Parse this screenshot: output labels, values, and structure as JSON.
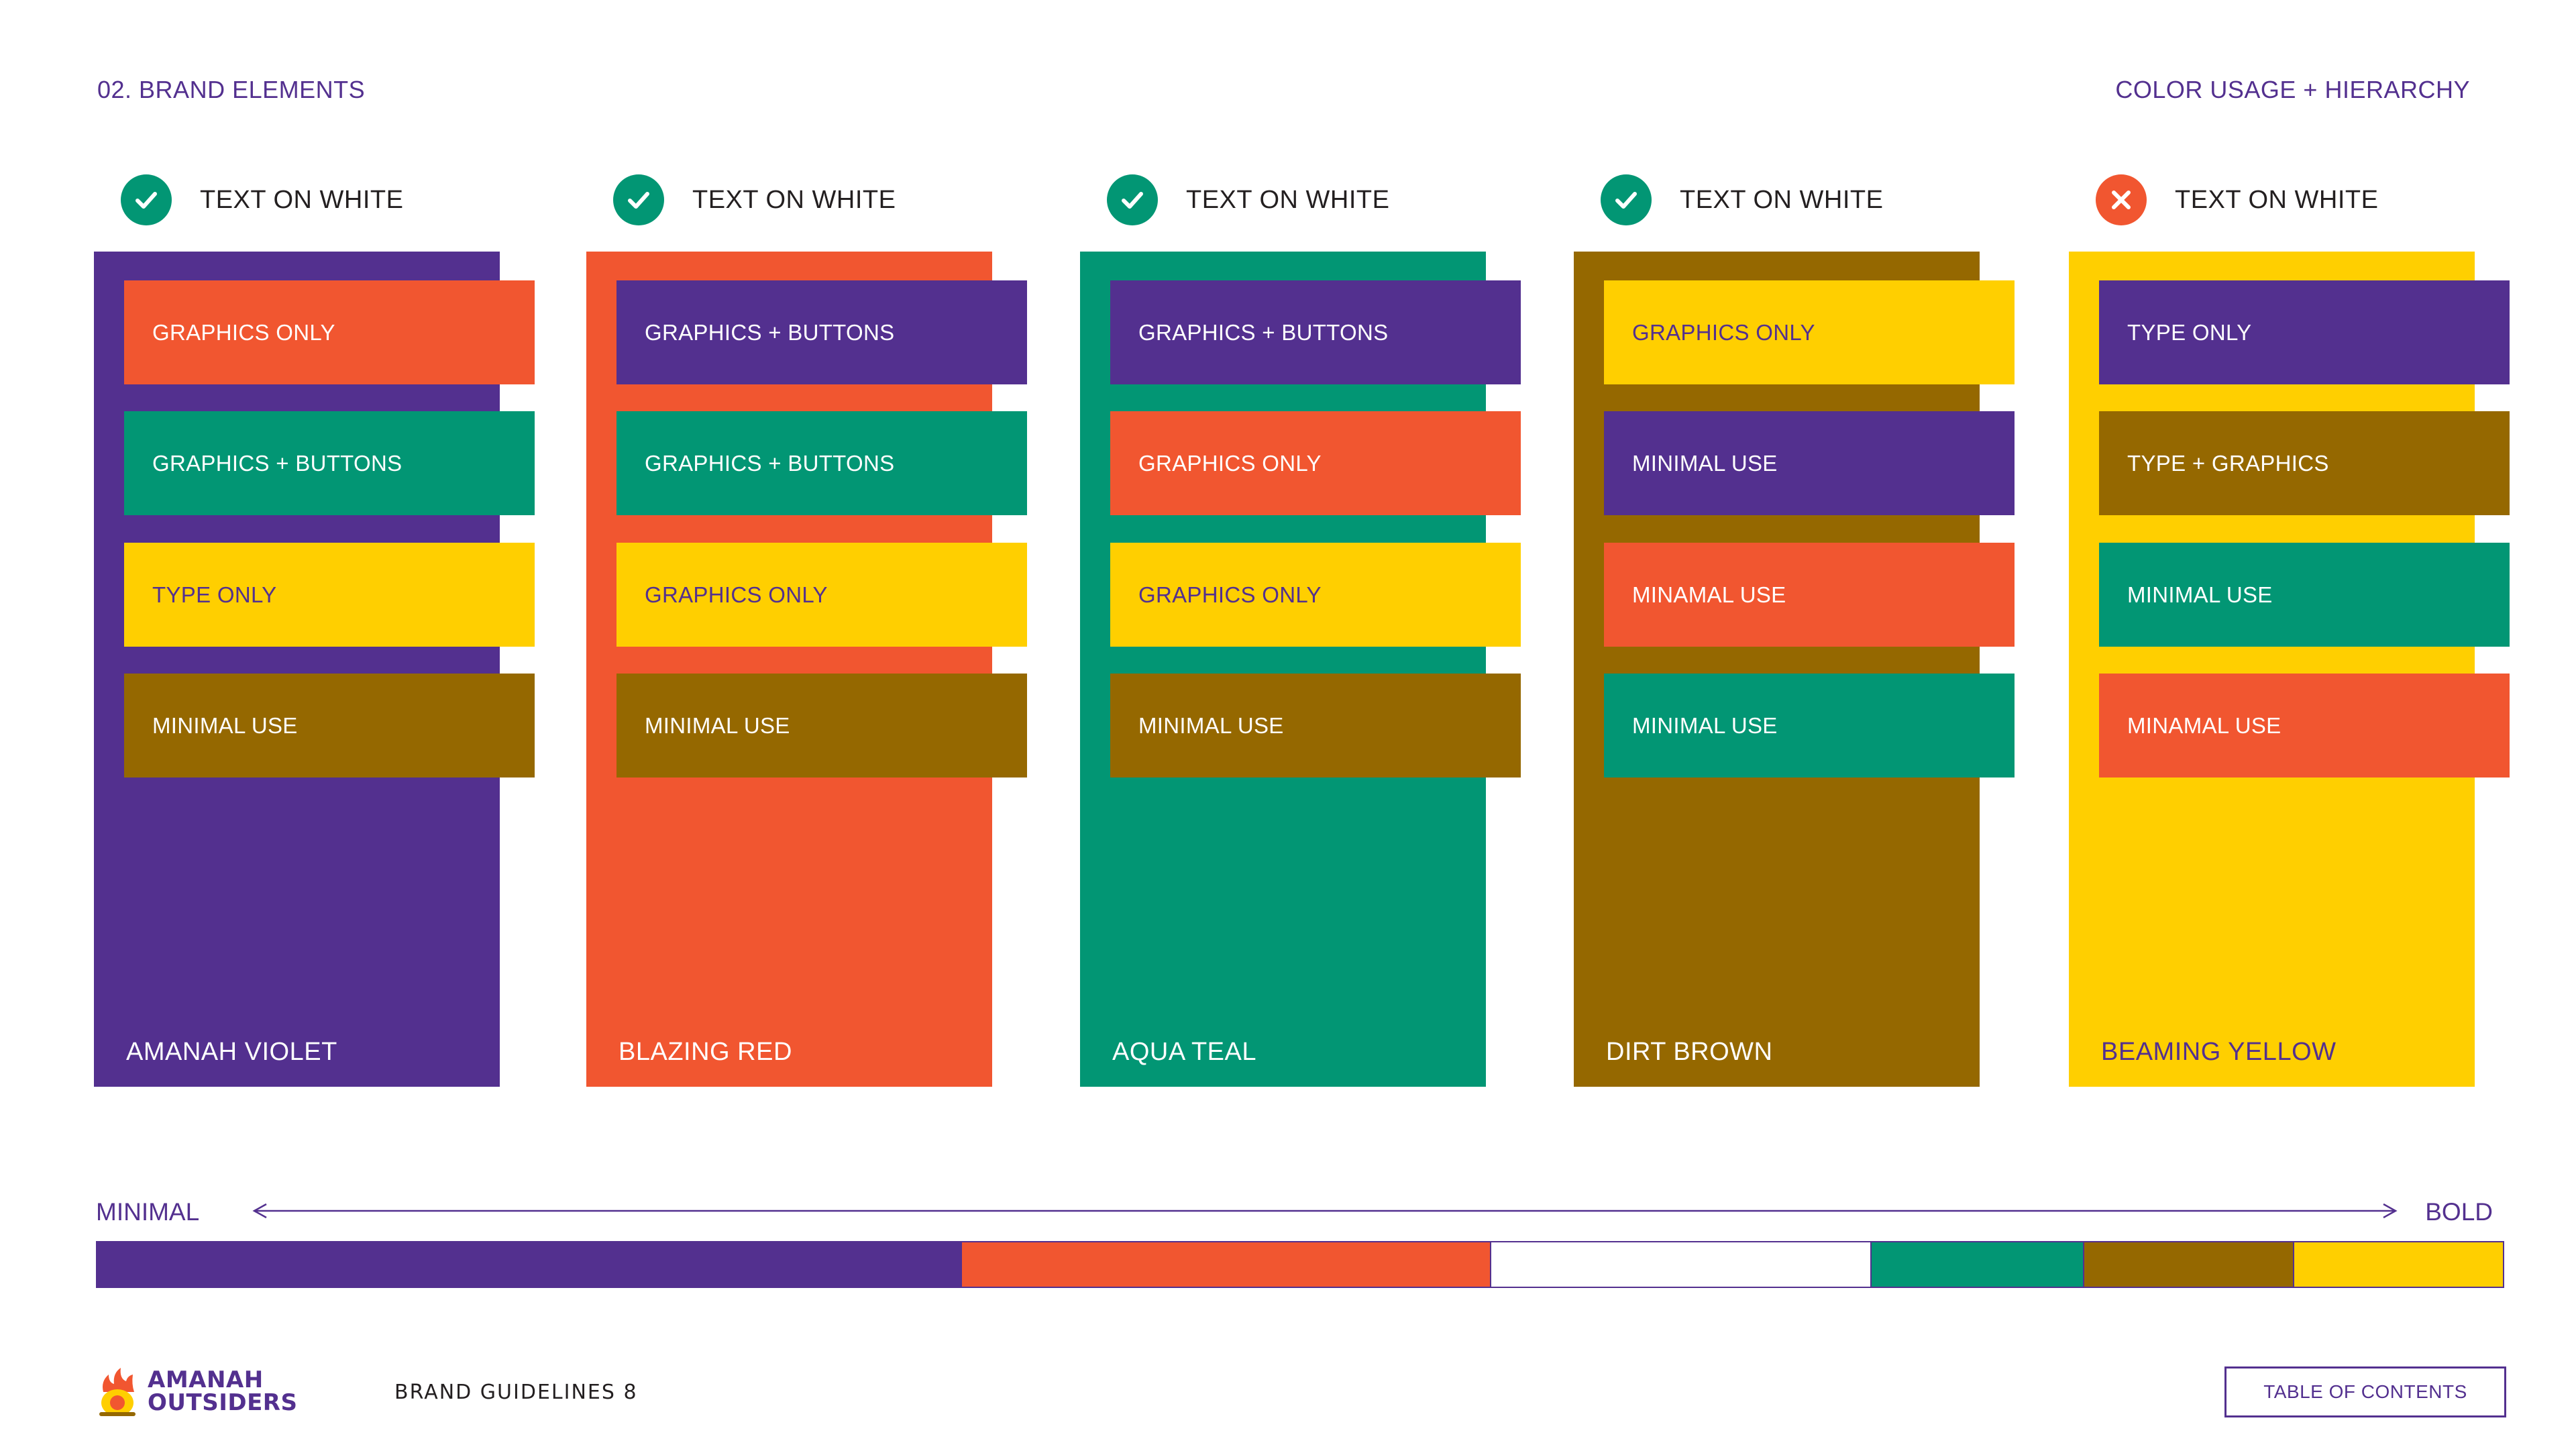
{
  "header": {
    "section": "02. BRAND ELEMENTS",
    "topic": "COLOR USAGE + HIERARCHY"
  },
  "colors": {
    "violet": "#53308f",
    "red": "#f15630",
    "teal": "#029674",
    "brown": "#956800",
    "yellow": "#ffcf00",
    "white": "#ffffff",
    "text_dark": "#231f20"
  },
  "columns": [
    {
      "swatch_name": "AMANAH VIOLET",
      "swatch_color": "#53308f",
      "status": "pass",
      "status_icon": "check-icon",
      "status_label": "TEXT ON WHITE",
      "usages": [
        {
          "label": "GRAPHICS ONLY",
          "bg": "#f15630",
          "fg": "#ffffff"
        },
        {
          "label": "GRAPHICS + BUTTONS",
          "bg": "#029674",
          "fg": "#ffffff"
        },
        {
          "label": "TYPE ONLY",
          "bg": "#ffcf00",
          "fg": "#53308f"
        },
        {
          "label": "MINIMAL USE",
          "bg": "#956800",
          "fg": "#ffffff"
        }
      ]
    },
    {
      "swatch_name": "BLAZING RED",
      "swatch_color": "#f15630",
      "status": "pass",
      "status_icon": "check-icon",
      "status_label": "TEXT ON WHITE",
      "usages": [
        {
          "label": "GRAPHICS + BUTTONS",
          "bg": "#53308f",
          "fg": "#ffffff"
        },
        {
          "label": "GRAPHICS + BUTTONS",
          "bg": "#029674",
          "fg": "#ffffff"
        },
        {
          "label": "GRAPHICS ONLY",
          "bg": "#ffcf00",
          "fg": "#53308f"
        },
        {
          "label": "MINIMAL USE",
          "bg": "#956800",
          "fg": "#ffffff"
        }
      ]
    },
    {
      "swatch_name": "AQUA TEAL",
      "swatch_color": "#029674",
      "status": "pass",
      "status_icon": "check-icon",
      "status_label": "TEXT ON WHITE",
      "usages": [
        {
          "label": "GRAPHICS + BUTTONS",
          "bg": "#53308f",
          "fg": "#ffffff"
        },
        {
          "label": "GRAPHICS ONLY",
          "bg": "#f15630",
          "fg": "#ffffff"
        },
        {
          "label": "GRAPHICS ONLY",
          "bg": "#ffcf00",
          "fg": "#53308f"
        },
        {
          "label": "MINIMAL USE",
          "bg": "#956800",
          "fg": "#ffffff"
        }
      ]
    },
    {
      "swatch_name": "DIRT BROWN",
      "swatch_color": "#956800",
      "status": "pass",
      "status_icon": "check-icon",
      "status_label": "TEXT ON WHITE",
      "usages": [
        {
          "label": "GRAPHICS ONLY",
          "bg": "#ffcf00",
          "fg": "#53308f"
        },
        {
          "label": "MINIMAL USE",
          "bg": "#53308f",
          "fg": "#ffffff"
        },
        {
          "label": "MINAMAL USE",
          "bg": "#f15630",
          "fg": "#ffffff"
        },
        {
          "label": "MINIMAL USE",
          "bg": "#029674",
          "fg": "#ffffff"
        }
      ]
    },
    {
      "swatch_name": "BEAMING YELLOW",
      "swatch_color": "#ffcf00",
      "swatch_name_color": "#53308f",
      "status": "fail",
      "status_icon": "close-icon",
      "status_label": "TEXT ON WHITE",
      "usages": [
        {
          "label": "TYPE ONLY",
          "bg": "#53308f",
          "fg": "#ffffff"
        },
        {
          "label": "TYPE + GRAPHICS",
          "bg": "#956800",
          "fg": "#ffffff"
        },
        {
          "label": "MINIMAL USE",
          "bg": "#029674",
          "fg": "#ffffff"
        },
        {
          "label": "MINAMAL USE",
          "bg": "#f15630",
          "fg": "#ffffff"
        }
      ]
    }
  ],
  "scale": {
    "min_label": "MINIMAL",
    "max_label": "BOLD",
    "arrow_icon": "double-arrow-icon",
    "segments": [
      {
        "color": "#53308f",
        "share": 0.36
      },
      {
        "color": "#f15630",
        "share": 0.22
      },
      {
        "color": "#ffffff",
        "share": 0.158
      },
      {
        "color": "#029674",
        "share": 0.088
      },
      {
        "color": "#956800",
        "share": 0.087
      },
      {
        "color": "#ffcf00",
        "share": 0.087
      }
    ]
  },
  "footer": {
    "logo_line1": "AMANAH",
    "logo_line2": "OUTSIDERS",
    "logo_icon": "campfire-logo-icon",
    "page_label": "BRAND GUIDELINES 8",
    "toc_label": "TABLE OF CONTENTS"
  }
}
